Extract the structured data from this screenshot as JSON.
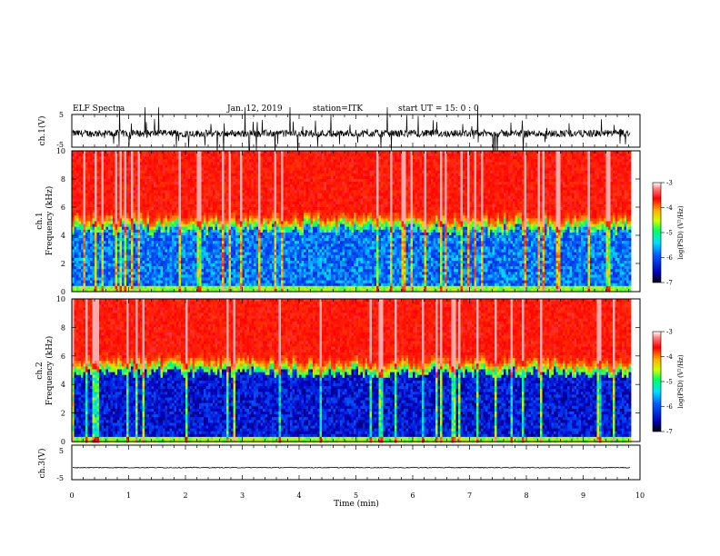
{
  "header": {
    "title": "ELF Spectra",
    "date": "Jan. 12, 2019",
    "station": "station=ITK",
    "start": "start UT = 15: 0 : 0"
  },
  "chart_data": [
    {
      "type": "line",
      "name": "ch1-waveform",
      "ylabel": "ch.1(V)",
      "ylim": [
        -5,
        5
      ],
      "yticks": [
        "5",
        "-5"
      ],
      "xlim": [
        0,
        10
      ],
      "trace_end_min": 9.83,
      "baseline_v": -0.8,
      "description_values": "noisy waveform around -0.8 V with spikes reaching beyond +5/-5 V"
    },
    {
      "type": "heatmap",
      "name": "ch1-spectrogram",
      "ylabel": "ch.1\nFrequency (kHz)",
      "ylim": [
        0,
        10
      ],
      "yticks": [
        "0",
        "2",
        "4",
        "6",
        "8",
        "10"
      ],
      "xlim": [
        0,
        10
      ],
      "trace_end_min": 9.83,
      "boundary_khz": 4.8,
      "colorbar": {
        "label": "log(PSD) (V²/Hz)",
        "ticks": [
          "-3",
          "-4",
          "-5",
          "-6",
          "-7"
        ],
        "range": [
          -7,
          -3
        ]
      }
    },
    {
      "type": "heatmap",
      "name": "ch2-spectrogram",
      "ylabel": "ch.2\nFrequency (kHz)",
      "ylim": [
        0,
        10
      ],
      "yticks": [
        "0",
        "2",
        "4",
        "6",
        "8",
        "10"
      ],
      "xlim": [
        0,
        10
      ],
      "trace_end_min": 9.83,
      "boundary_khz": 5.2,
      "colorbar": {
        "label": "log(PSD) (V²/Hz)",
        "ticks": [
          "-3",
          "-4",
          "-5",
          "-6",
          "-7"
        ],
        "range": [
          -7,
          -3
        ]
      }
    },
    {
      "type": "line",
      "name": "ch3-waveform",
      "ylabel": "ch.3(V)",
      "ylim": [
        -5,
        5
      ],
      "yticks": [
        "5",
        "-5"
      ],
      "xlim": [
        0,
        10
      ],
      "trace_end_min": 9.83,
      "baseline_v": -1.5
    }
  ],
  "xaxis": {
    "label": "Time (min)",
    "ticks": [
      "0",
      "1",
      "2",
      "3",
      "4",
      "5",
      "6",
      "7",
      "8",
      "9",
      "10"
    ]
  },
  "colors": {
    "colormap": [
      "#00007a",
      "#0000ff",
      "#00c8ff",
      "#00ff80",
      "#ffff00",
      "#ff8000",
      "#ff0000",
      "#ffffff"
    ]
  }
}
